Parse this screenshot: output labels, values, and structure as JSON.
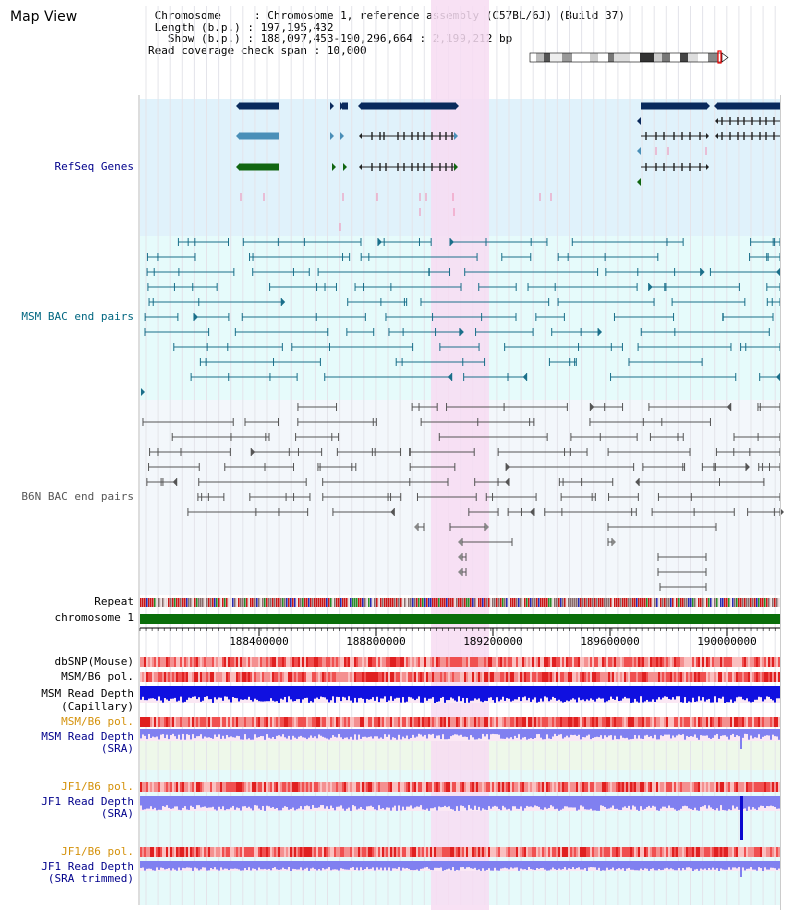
{
  "map_title": "Map View",
  "info": {
    "chromosome_label": "Chromosome",
    "chromosome_value": "Chromosome 1, reference assembly (C57BL/6J) (Build 37)",
    "length_label": "Length (b.p.)",
    "length_value": "197,195,432",
    "show_label": "Show (b.p.)",
    "show_value": "188,097,453-190,296,664 : 2,199,212 bp",
    "coverage_label": "Read coverage check span",
    "coverage_value": "10,000"
  },
  "tracks": {
    "refseq": "RefSeq Genes",
    "msm_bac": "MSM BAC end pairs",
    "b6n_bac": "B6N BAC end pairs",
    "repeat": "Repeat",
    "chromosome": "chromosome 1",
    "dbsnp": "dbSNP(Mouse)",
    "msm_b6_pol_1": "MSM/B6 pol.",
    "msm_read_depth_cap_1": "MSM Read Depth",
    "msm_read_depth_cap_2": "(Capillary)",
    "msm_b6_pol_2": "MSM/B6 pol.",
    "msm_read_depth_sra_1": "MSM Read Depth",
    "msm_read_depth_sra_2": "(SRA)",
    "jf1_b6_pol_1": "JF1/B6 pol.",
    "jf1_read_depth_sra_1": "JF1 Read Depth",
    "jf1_read_depth_sra_2": "(SRA)",
    "jf1_b6_pol_2": "JF1/B6 pol.",
    "jf1_read_depth_trim_1": "JF1 Read Depth",
    "jf1_read_depth_trim_2": "(SRA trimmed)"
  },
  "axis_ticks": [
    "188400000",
    "188800000",
    "189200000",
    "189600000",
    "190000000"
  ],
  "colors": {
    "refseq_bg": "#e0f2fb",
    "msm_bg": "#e6fbfb",
    "b6n_bg": "#f3f7fb",
    "highlight": "#f7dcf2",
    "refseq_dark": "#0a2a5c",
    "refseq_mid": "#4a8fb8",
    "refseq_green": "#116611",
    "msm_line": "#1a6f8a",
    "b6n_line": "#555555",
    "chromosome_bar": "#0a6e0a",
    "depth_blue": "#1010e0",
    "depth_light": "#8080f0",
    "label_blue": "#00008b",
    "label_orange": "#d4910a",
    "label_teal": "#006680"
  }
}
